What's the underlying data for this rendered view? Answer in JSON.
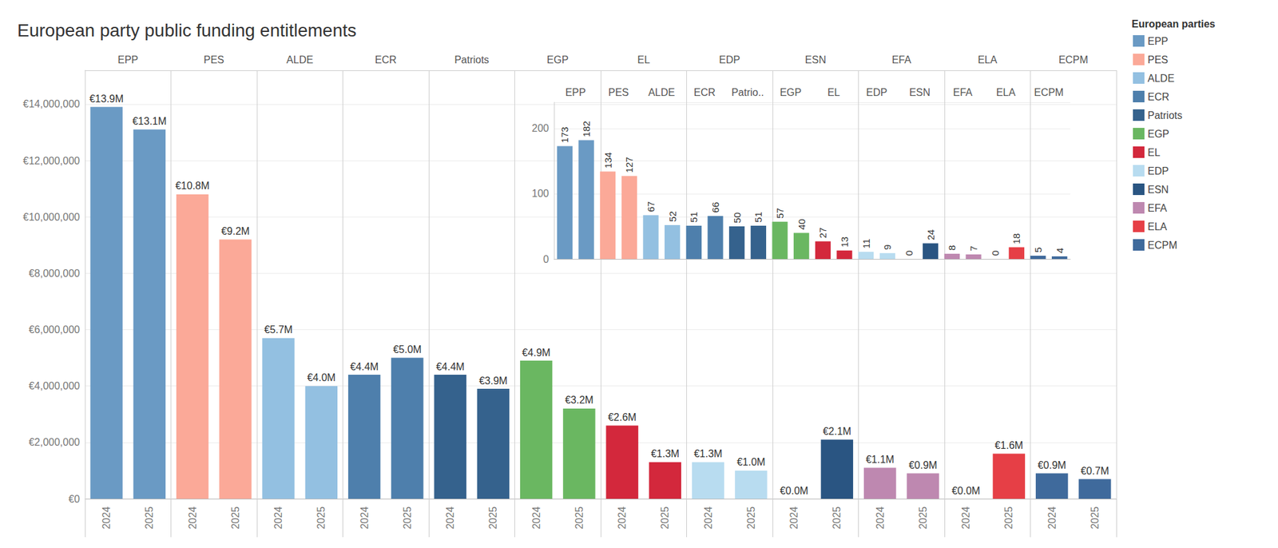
{
  "chart_data": [
    {
      "type": "bar",
      "title": "European party public funding entitlements",
      "legend_title": "European parties",
      "legend": "right",
      "grid": true,
      "data_labels": true,
      "groups": [
        "EPP",
        "PES",
        "ALDE",
        "ECR",
        "Patriots",
        "EGP",
        "EL",
        "EDP",
        "ESN",
        "EFA",
        "ELA",
        "ECPM"
      ],
      "x": [
        "2024",
        "2025"
      ],
      "ylim": [
        0,
        15200000
      ],
      "yticks": [
        {
          "value": 0,
          "label": "€0"
        },
        {
          "value": 2000000,
          "label": "€2,000,000"
        },
        {
          "value": 4000000,
          "label": "€4,000,000"
        },
        {
          "value": 6000000,
          "label": "€6,000,000"
        },
        {
          "value": 8000000,
          "label": "€8,000,000"
        },
        {
          "value": 10000000,
          "label": "€10,000,000"
        },
        {
          "value": 12000000,
          "label": "€12,000,000"
        },
        {
          "value": 14000000,
          "label": "€14,000,000"
        }
      ],
      "series": [
        {
          "name": "EPP",
          "color": "#6a9ac4",
          "values": [
            13900000,
            13100000
          ],
          "value_labels": [
            "€13.9M",
            "€13.1M"
          ]
        },
        {
          "name": "PES",
          "color": "#fba998",
          "values": [
            10800000,
            9200000
          ],
          "value_labels": [
            "€10.8M",
            "€9.2M"
          ]
        },
        {
          "name": "ALDE",
          "color": "#93c0e1",
          "values": [
            5700000,
            4000000
          ],
          "value_labels": [
            "€5.7M",
            "€4.0M"
          ]
        },
        {
          "name": "ECR",
          "color": "#4e7fac",
          "values": [
            4400000,
            5000000
          ],
          "value_labels": [
            "€4.4M",
            "€5.0M"
          ]
        },
        {
          "name": "Patriots",
          "color": "#35628d",
          "values": [
            4400000,
            3900000
          ],
          "value_labels": [
            "€4.4M",
            "€3.9M"
          ]
        },
        {
          "name": "EGP",
          "color": "#6ab761",
          "values": [
            4900000,
            3200000
          ],
          "value_labels": [
            "€4.9M",
            "€3.2M"
          ]
        },
        {
          "name": "EL",
          "color": "#d3283c",
          "values": [
            2600000,
            1300000
          ],
          "value_labels": [
            "€2.6M",
            "€1.3M"
          ]
        },
        {
          "name": "EDP",
          "color": "#b8dcf0",
          "values": [
            1300000,
            1000000
          ],
          "value_labels": [
            "€1.3M",
            "€1.0M"
          ]
        },
        {
          "name": "ESN",
          "color": "#2a5582",
          "values": [
            0,
            2100000
          ],
          "value_labels": [
            "€0.0M",
            "€2.1M"
          ]
        },
        {
          "name": "EFA",
          "color": "#be88b0",
          "values": [
            1100000,
            900000
          ],
          "value_labels": [
            "€1.1M",
            "€0.9M"
          ]
        },
        {
          "name": "ELA",
          "color": "#e63f46",
          "values": [
            0,
            1600000
          ],
          "value_labels": [
            "€0.0M",
            "€1.6M"
          ]
        },
        {
          "name": "ECPM",
          "color": "#3f6a9c",
          "values": [
            900000,
            700000
          ],
          "value_labels": [
            "€0.9M",
            "€0.7M"
          ]
        }
      ]
    },
    {
      "type": "bar",
      "grid": true,
      "data_labels": true,
      "groups": [
        "EPP",
        "PES",
        "ALDE",
        "ECR",
        "Patrio..",
        "EGP",
        "EL",
        "EDP",
        "ESN",
        "EFA",
        "ELA",
        "ECPM"
      ],
      "ylim": [
        0,
        240
      ],
      "yticks": [
        0,
        100,
        200
      ],
      "series": [
        {
          "name": "EPP",
          "color": "#6a9ac4",
          "values": [
            173,
            182
          ]
        },
        {
          "name": "PES",
          "color": "#fba998",
          "values": [
            134,
            127
          ]
        },
        {
          "name": "ALDE",
          "color": "#93c0e1",
          "values": [
            67,
            52
          ]
        },
        {
          "name": "ECR",
          "color": "#4e7fac",
          "values": [
            51,
            66
          ]
        },
        {
          "name": "Patriots",
          "color": "#35628d",
          "values": [
            50,
            51
          ]
        },
        {
          "name": "EGP",
          "color": "#6ab761",
          "values": [
            57,
            40
          ]
        },
        {
          "name": "EL",
          "color": "#d3283c",
          "values": [
            27,
            13
          ]
        },
        {
          "name": "EDP",
          "color": "#b8dcf0",
          "values": [
            11,
            9
          ]
        },
        {
          "name": "ESN",
          "color": "#2a5582",
          "values": [
            0,
            24
          ]
        },
        {
          "name": "EFA",
          "color": "#be88b0",
          "values": [
            8,
            7
          ]
        },
        {
          "name": "ELA",
          "color": "#e63f46",
          "values": [
            0,
            18
          ]
        },
        {
          "name": "ECPM",
          "color": "#3f6a9c",
          "values": [
            5,
            4
          ]
        }
      ]
    }
  ]
}
